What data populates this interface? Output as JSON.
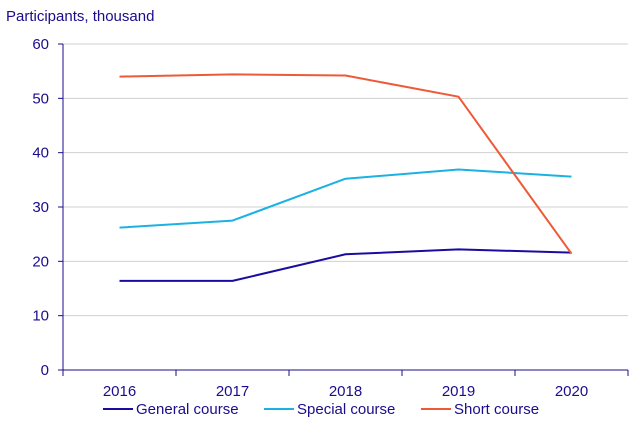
{
  "chart_data": {
    "type": "line",
    "ylabel": "Participants, thousand",
    "xlabel": "",
    "categories": [
      "2016",
      "2017",
      "2018",
      "2019",
      "2020"
    ],
    "ylim": [
      0,
      60
    ],
    "yticks": [
      0,
      10,
      20,
      30,
      40,
      50,
      60
    ],
    "grid": true,
    "legend_position": "bottom",
    "series": [
      {
        "name": "General course",
        "color": "#1a0ca0",
        "values": [
          16.4,
          16.4,
          21.3,
          22.2,
          21.6
        ]
      },
      {
        "name": "Special course",
        "color": "#1bb2e3",
        "values": [
          26.2,
          27.5,
          35.2,
          36.9,
          35.6
        ]
      },
      {
        "name": "Short course",
        "color": "#ee5a37",
        "values": [
          54.0,
          54.4,
          54.2,
          50.3,
          21.4
        ]
      }
    ]
  }
}
